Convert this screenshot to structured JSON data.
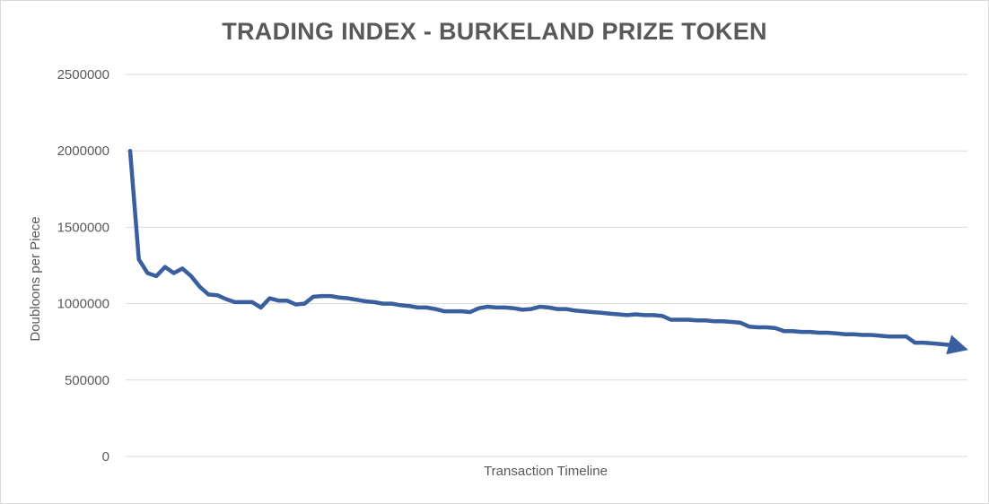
{
  "chart_data": {
    "type": "line",
    "title": "TRADING INDEX - BURKELAND PRIZE TOKEN",
    "xlabel": "Transaction Timeline",
    "ylabel": "Doubloons per Piece",
    "ylim": [
      0,
      2500000
    ],
    "yticks": [
      "0",
      "500000",
      "1000000",
      "1500000",
      "2000000",
      "2500000"
    ],
    "grid": true,
    "legend": "none",
    "line_color": "#3a5f9f",
    "series": [
      {
        "values": [
          2000000,
          1290000,
          1200000,
          1180000,
          1240000,
          1200000,
          1230000,
          1180000,
          1110000,
          1060000,
          1055000,
          1030000,
          1010000,
          1010000,
          1010000,
          975000,
          1035000,
          1020000,
          1020000,
          995000,
          1000000,
          1045000,
          1050000,
          1050000,
          1040000,
          1035000,
          1025000,
          1015000,
          1010000,
          1000000,
          1000000,
          990000,
          985000,
          975000,
          975000,
          965000,
          950000,
          950000,
          950000,
          945000,
          970000,
          980000,
          975000,
          975000,
          970000,
          960000,
          965000,
          980000,
          975000,
          965000,
          965000,
          955000,
          950000,
          945000,
          940000,
          935000,
          930000,
          925000,
          930000,
          925000,
          925000,
          920000,
          895000,
          895000,
          895000,
          890000,
          890000,
          885000,
          885000,
          880000,
          875000,
          850000,
          845000,
          845000,
          840000,
          820000,
          820000,
          815000,
          815000,
          810000,
          810000,
          805000,
          800000,
          800000,
          795000,
          795000,
          790000,
          785000,
          785000,
          785000,
          745000,
          745000,
          740000,
          735000,
          730000,
          715000
        ]
      }
    ]
  }
}
